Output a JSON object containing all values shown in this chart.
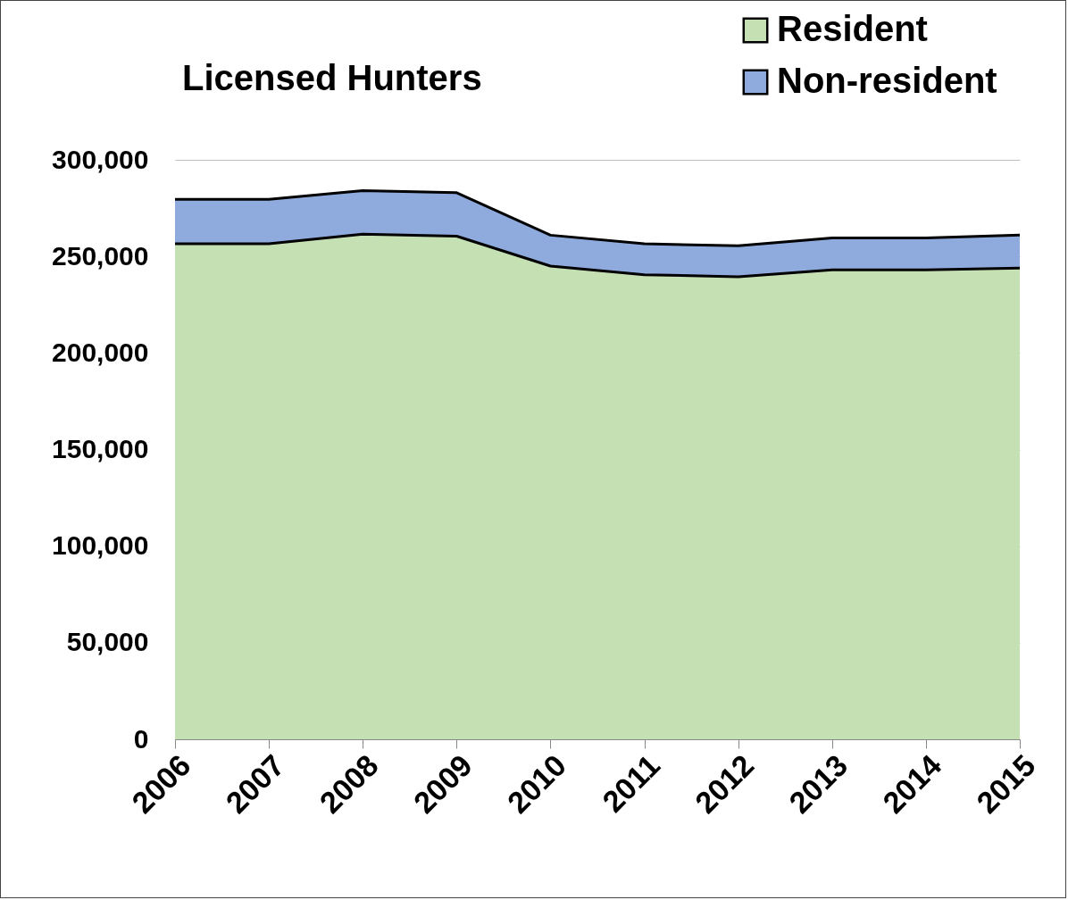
{
  "chart_data": {
    "type": "area",
    "title": "Licensed Hunters",
    "stacked": true,
    "categories": [
      "2006",
      "2007",
      "2008",
      "2009",
      "2010",
      "2011",
      "2012",
      "2013",
      "2014",
      "2015"
    ],
    "series": [
      {
        "name": "Resident",
        "color": "#c5e0b3",
        "values": [
          256500,
          256500,
          261500,
          260500,
          245000,
          240500,
          239500,
          243000,
          243000,
          244000
        ]
      },
      {
        "name": "Non-resident",
        "color": "#8faadc",
        "values": [
          23000,
          23000,
          22500,
          22500,
          16000,
          16000,
          16000,
          16500,
          16500,
          17000
        ]
      }
    ],
    "ylim": [
      0,
      300000
    ],
    "yticks": [
      0,
      {
        "value": 50000,
        "label": "50,000"
      },
      {
        "value": 100000,
        "label": "100,000"
      },
      {
        "value": 150000,
        "label": "150,000"
      },
      {
        "value": 200000,
        "label": "200,000"
      },
      {
        "value": 250000,
        "label": "250,000"
      },
      {
        "value": 300000,
        "label": "300,000"
      }
    ],
    "grid": "y",
    "legend": "top right"
  }
}
